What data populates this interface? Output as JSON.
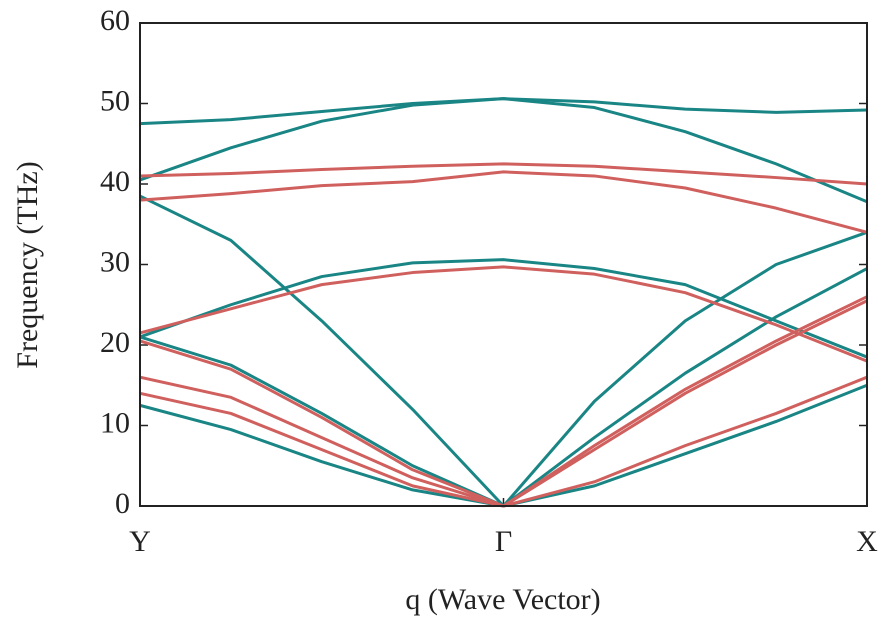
{
  "chart_data": {
    "type": "line",
    "x_label": "q (Wave Vector)",
    "y_label": "Frequency (THz)",
    "x": [
      0,
      0.25,
      0.5,
      0.75,
      1,
      1.25,
      1.5,
      1.75,
      2
    ],
    "xlim": [
      0,
      2
    ],
    "xticks": [
      {
        "value": 0,
        "label": "Y"
      },
      {
        "value": 1,
        "label": "Γ"
      },
      {
        "value": 2,
        "label": "X"
      }
    ],
    "ylim": [
      0,
      60
    ],
    "yticks": [
      0,
      10,
      20,
      30,
      40,
      50,
      60
    ],
    "series": [
      {
        "color": "#1a8585",
        "values": [
          47.5,
          48,
          49,
          50,
          50.6,
          50.2,
          49.3,
          48.9,
          49.2
        ]
      },
      {
        "color": "#1a8585",
        "values": [
          40.5,
          44.5,
          47.8,
          49.8,
          50.6,
          49.5,
          46.5,
          42.5,
          37.8
        ]
      },
      {
        "color": "#1a8585",
        "values": [
          38.5,
          33,
          23,
          12,
          0,
          13,
          23,
          30,
          34
        ]
      },
      {
        "color": "#1a8585",
        "values": [
          21,
          25,
          28.5,
          30.2,
          30.6,
          29.5,
          27.5,
          23,
          18.5
        ]
      },
      {
        "color": "#1a8585",
        "values": [
          21,
          17.5,
          11.5,
          5,
          0,
          8.5,
          16.5,
          23.5,
          29.5
        ]
      },
      {
        "color": "#1a8585",
        "values": [
          12.5,
          9.5,
          5.5,
          2,
          0,
          2.5,
          6.5,
          10.5,
          15
        ]
      },
      {
        "color": "#d0605e",
        "values": [
          41,
          41.3,
          41.8,
          42.2,
          42.5,
          42.2,
          41.5,
          40.8,
          40
        ]
      },
      {
        "color": "#d0605e",
        "values": [
          38,
          38.8,
          39.8,
          40.3,
          41.5,
          41,
          39.5,
          37,
          34
        ]
      },
      {
        "color": "#d0605e",
        "values": [
          21.5,
          24.5,
          27.5,
          29,
          29.7,
          28.8,
          26.5,
          22.5,
          18
        ]
      },
      {
        "color": "#d0605e",
        "values": [
          20.5,
          17,
          11,
          4.5,
          0,
          7.5,
          14.5,
          20.5,
          26
        ]
      },
      {
        "color": "#d0605e",
        "values": [
          16,
          13.5,
          8.5,
          3.5,
          0,
          7,
          14,
          20,
          25.5
        ]
      },
      {
        "color": "#d0605e",
        "values": [
          14,
          11.5,
          7,
          2.5,
          0,
          3,
          7.5,
          11.5,
          16
        ]
      }
    ]
  }
}
